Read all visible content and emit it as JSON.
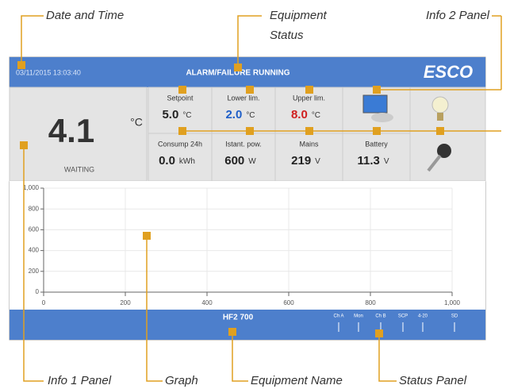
{
  "annotations": {
    "date_time": "Date and Time",
    "equipment_status": [
      "Equipment",
      "Status"
    ],
    "info2": "Info 2 Panel",
    "info1": "Info 1 Panel",
    "graph": "Graph",
    "equipment_name": "Equipment Name",
    "status_panel": "Status Panel"
  },
  "header": {
    "datetime": "03/11/2015 13:03:40",
    "status": "ALARM/FAILURE RUNNING",
    "logo": "ESCO"
  },
  "info1": {
    "value": "4.1",
    "unit": "°C",
    "state": "WAITING"
  },
  "info2": {
    "cells": [
      {
        "label": "Setpoint",
        "value": "5.0",
        "unit": "°C",
        "color": "#222222"
      },
      {
        "label": "Lower lim.",
        "value": "2.0",
        "unit": "°C",
        "color": "#1f5fc8"
      },
      {
        "label": "Upper lim.",
        "value": "8.0",
        "unit": "°C",
        "color": "#d02020"
      },
      {
        "label": "Consump 24h",
        "value": "0.0",
        "unit": "kWh",
        "color": "#222222"
      },
      {
        "label": "Istant. pow.",
        "value": "600",
        "unit": "W",
        "color": "#222222"
      },
      {
        "label": "Mains",
        "value": "219",
        "unit": "V",
        "color": "#222222"
      },
      {
        "label": "Battery",
        "value": "11.3",
        "unit": "V",
        "color": "#222222"
      }
    ]
  },
  "graph": {
    "yticks": [
      "1,000",
      "800",
      "600",
      "400",
      "200",
      "0"
    ],
    "xticks": [
      "0",
      "200",
      "400",
      "600",
      "800",
      "1,000"
    ]
  },
  "footer": {
    "name": "HF2 700",
    "status_labels": [
      "Ch A",
      "Mon",
      "Ch B",
      "SCP",
      "4-20",
      "SD"
    ]
  }
}
